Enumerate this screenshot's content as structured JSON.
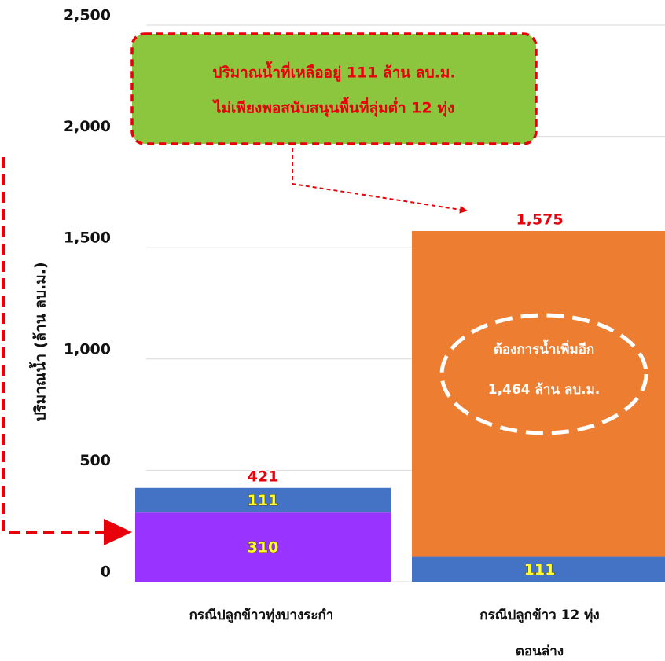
{
  "chart_data": {
    "type": "bar",
    "stacked": true,
    "ylabel": "ปริมาณน้ำ (ล้าน ลบ.ม.)",
    "ylim": [
      0,
      2500
    ],
    "yticks": [
      0,
      500,
      1000,
      1500,
      2000,
      2500
    ],
    "ytick_labels": [
      "0",
      "500",
      "1,000",
      "1,500",
      "2,000",
      "2,500"
    ],
    "grid": true,
    "categories": [
      {
        "lines": [
          "กรณีปลูกข้าวทุ่งบางระกำ"
        ]
      },
      {
        "lines": [
          "กรณีปลูกข้าว 12 ทุ่ง",
          "ตอนล่าง"
        ]
      }
    ],
    "series": [
      {
        "values": [
          310,
          null
        ],
        "labels": [
          "310",
          ""
        ],
        "color": "#9933ff"
      },
      {
        "values": [
          111,
          111
        ],
        "labels": [
          "111",
          "111"
        ],
        "color": "#4472c4"
      },
      {
        "values": [
          null,
          1464
        ],
        "labels": [
          "",
          ""
        ],
        "color": "#ed7d31"
      }
    ],
    "totals": [
      421,
      1575
    ],
    "total_labels": [
      "421",
      "1,575"
    ],
    "annotations": {
      "callout_box": {
        "lines": [
          "ปริมาณน้ำที่เหลืออยู่ 111 ล้าน ลบ.ม.",
          "ไม่เพียงพอสนับสนุนพื้นที่ลุ่มต่ำ 12 ทุ่ง"
        ],
        "fill": "#8cc63f",
        "border": "#e8000b"
      },
      "oval": {
        "lines": [
          "ต้องการน้ำเพิ่มอีก",
          "1,464 ล้าน ลบ.ม."
        ]
      },
      "arrow_color": "#e8000b"
    }
  }
}
